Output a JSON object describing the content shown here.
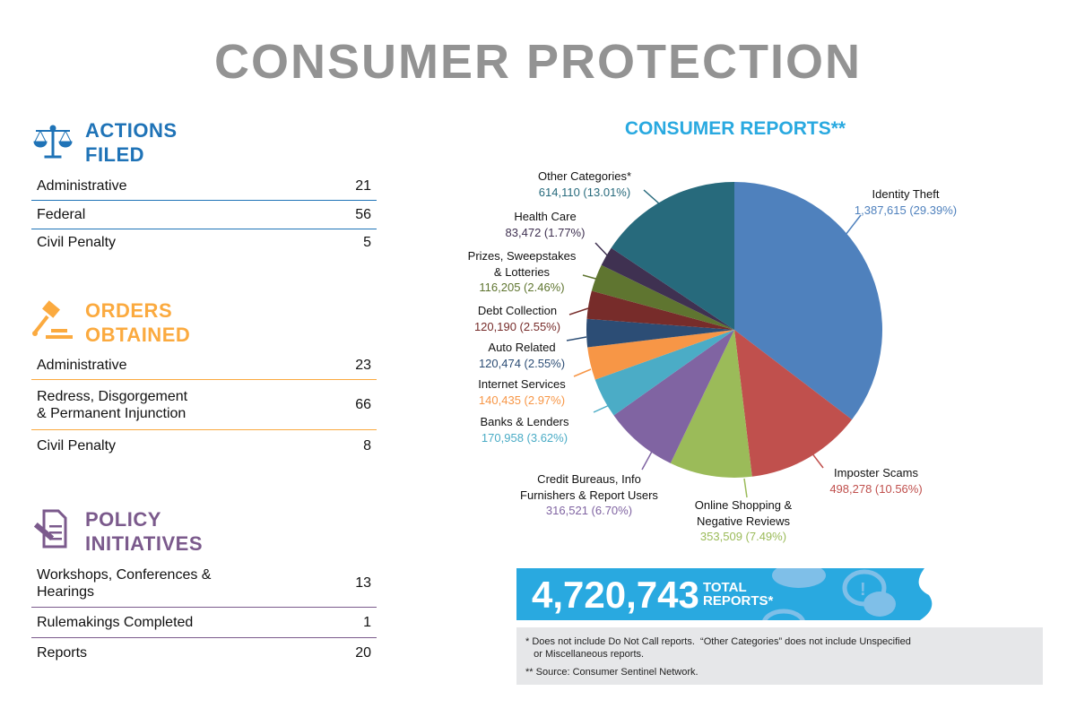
{
  "title": "CONSUMER PROTECTION",
  "sections": [
    {
      "title_line1": "ACTIONS",
      "title_line2": "FILED",
      "icon": "scales-icon",
      "color": "#1f73b7",
      "rows": [
        {
          "label": "Administrative",
          "value": "21"
        },
        {
          "label": "Federal",
          "value": "56"
        },
        {
          "label": "Civil Penalty",
          "value": "5"
        }
      ]
    },
    {
      "title_line1": "ORDERS",
      "title_line2": "OBTAINED",
      "icon": "gavel-icon",
      "color": "#fbaa3f",
      "rows": [
        {
          "label": "Administrative",
          "value": "23"
        },
        {
          "label": "Redress, Disgorgement\n& Permanent Injunction",
          "value": "66"
        },
        {
          "label": "Civil Penalty",
          "value": "8"
        }
      ]
    },
    {
      "title_line1": "POLICY",
      "title_line2": "INITIATIVES",
      "icon": "document-pen-icon",
      "color": "#7b5a8c",
      "rows": [
        {
          "label": "Workshops, Conferences &\nHearings",
          "value": "13"
        },
        {
          "label": "Rulemakings Completed",
          "value": "1"
        },
        {
          "label": "Reports",
          "value": "20"
        }
      ]
    }
  ],
  "chart_data": {
    "type": "pie",
    "title": "CONSUMER REPORTS**",
    "start": "top",
    "direction": "clockwise",
    "slices": [
      {
        "name": "Identity Theft",
        "value": 1387615,
        "label": "1,387,615 (29.39%)",
        "color": "#4f81bd"
      },
      {
        "name": "Imposter Scams",
        "value": 498278,
        "label": "498,278 (10.56%)",
        "color": "#c0504d"
      },
      {
        "name": "Online Shopping &\nNegative Reviews",
        "value": 353509,
        "label": "353,509 (7.49%)",
        "color": "#9bbb59"
      },
      {
        "name": "Credit Bureaus, Info\nFurnishers & Report Users",
        "value": 316521,
        "label": "316,521 (6.70%)",
        "color": "#8064a2"
      },
      {
        "name": "Banks & Lenders",
        "value": 170958,
        "label": "170,958 (3.62%)",
        "color": "#4bacc6"
      },
      {
        "name": "Internet Services",
        "value": 140435,
        "label": "140,435 (2.97%)",
        "color": "#f79646"
      },
      {
        "name": "Auto Related",
        "value": 120474,
        "label": "120,474 (2.55%)",
        "color": "#2c4d75"
      },
      {
        "name": "Debt Collection",
        "value": 120190,
        "label": "120,190 (2.55%)",
        "color": "#772c2a"
      },
      {
        "name": "Prizes, Sweepstakes\n& Lotteries",
        "value": 116205,
        "label": "116,205 (2.46%)",
        "color": "#5f7530"
      },
      {
        "name": "Health Care",
        "value": 83472,
        "label": "83,472 (1.77%)",
        "color": "#3f3151"
      },
      {
        "name": "Other Categories*",
        "value": 614110,
        "label": "614,110 (13.01%)",
        "color": "#276a7c"
      }
    ]
  },
  "total": {
    "value": "4,720,743",
    "label_line1": "TOTAL",
    "label_line2": "REPORTS*"
  },
  "notes": [
    "* Does not include Do Not Call reports.  “Other Categories” does not include Unspecified\n   or Miscellaneous reports.",
    "** Source: Consumer Sentinel Network."
  ]
}
